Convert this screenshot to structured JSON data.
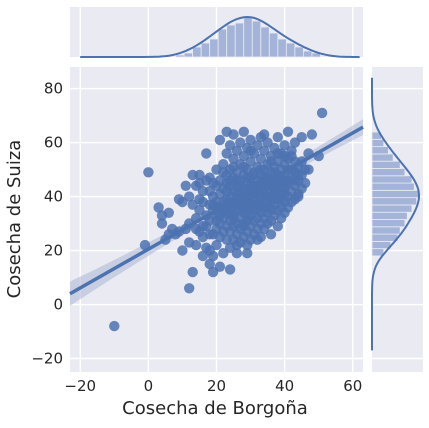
{
  "colors": {
    "background": "#eaeaf2",
    "grid": "#ffffff",
    "marker": "#4c72b0",
    "regression_line": "#4c72b0",
    "confidence_band": "#aab7d6",
    "histogram_bar": "#a4b4d8",
    "kde_line": "#4c72b0"
  },
  "chart_data": {
    "type": "scatter",
    "title": "",
    "xlabel": "Cosecha de Borgoña",
    "ylabel": "Cosecha de Suiza",
    "xlim": [
      -23,
      63
    ],
    "ylim": [
      -25,
      88
    ],
    "xticks": [
      -20,
      0,
      20,
      40,
      60
    ],
    "yticks": [
      -20,
      0,
      20,
      40,
      60,
      80
    ],
    "grid": true,
    "regression": {
      "slope": 0.718,
      "intercept": 20.5,
      "ci_halfwidth_at_mean": 1.6,
      "ci_halfwidth_at_ends": 4.5
    },
    "marginal_x_histogram": {
      "bin_edges": [
        8,
        10.5,
        13,
        15.5,
        18,
        20.5,
        23,
        25.5,
        28,
        30.5,
        33,
        35.5,
        38,
        40.5,
        43,
        45.5,
        48,
        50.5
      ],
      "counts": [
        1,
        2,
        5,
        7,
        9,
        14,
        16,
        17,
        20,
        18,
        15,
        12,
        9,
        7,
        5,
        3,
        2
      ]
    },
    "marginal_y_histogram": {
      "bin_edges": [
        18,
        20.7,
        23.4,
        26.1,
        28.8,
        31.5,
        34.2,
        36.9,
        39.6,
        42.3,
        45,
        47.7,
        50.4,
        53.1,
        55.8,
        58.5,
        61.2,
        63.9
      ],
      "counts": [
        5,
        8,
        11,
        12,
        14,
        15,
        17,
        19,
        20,
        18,
        17,
        14,
        12,
        9,
        7,
        5,
        4
      ]
    },
    "points": [
      [
        -10,
        -8
      ],
      [
        -1,
        22
      ],
      [
        0,
        49
      ],
      [
        4,
        33
      ],
      [
        3,
        36
      ],
      [
        4,
        30
      ],
      [
        5,
        24
      ],
      [
        6,
        34
      ],
      [
        7,
        28
      ],
      [
        8,
        26
      ],
      [
        9,
        27
      ],
      [
        10,
        38
      ],
      [
        10,
        20
      ],
      [
        11,
        28
      ],
      [
        12,
        30
      ],
      [
        12,
        40
      ],
      [
        12,
        6
      ],
      [
        13,
        12
      ],
      [
        13,
        37
      ],
      [
        14,
        28
      ],
      [
        14,
        44
      ],
      [
        14,
        32
      ],
      [
        15,
        27
      ],
      [
        15,
        35
      ],
      [
        15,
        45
      ],
      [
        15,
        48
      ],
      [
        16,
        38
      ],
      [
        16,
        25
      ],
      [
        16,
        42
      ],
      [
        17,
        33
      ],
      [
        17,
        29
      ],
      [
        17,
        21
      ],
      [
        17,
        46
      ],
      [
        18,
        20
      ],
      [
        18,
        31
      ],
      [
        18,
        37
      ],
      [
        18,
        42
      ],
      [
        18,
        15
      ],
      [
        19,
        26
      ],
      [
        19,
        35
      ],
      [
        19,
        40
      ],
      [
        19,
        18
      ],
      [
        19,
        12
      ],
      [
        20,
        28
      ],
      [
        20,
        33
      ],
      [
        20,
        38
      ],
      [
        20,
        44
      ],
      [
        20,
        50
      ],
      [
        20,
        22
      ],
      [
        21,
        30
      ],
      [
        21,
        36
      ],
      [
        21,
        41
      ],
      [
        21,
        46
      ],
      [
        21,
        25
      ],
      [
        21,
        14
      ],
      [
        22,
        27
      ],
      [
        22,
        32
      ],
      [
        22,
        38
      ],
      [
        22,
        43
      ],
      [
        22,
        52
      ],
      [
        22,
        19
      ],
      [
        23,
        29
      ],
      [
        23,
        34
      ],
      [
        23,
        39
      ],
      [
        23,
        45
      ],
      [
        23,
        48
      ],
      [
        23,
        24
      ],
      [
        23,
        56
      ],
      [
        24,
        31
      ],
      [
        24,
        36
      ],
      [
        24,
        40
      ],
      [
        24,
        44
      ],
      [
        24,
        27
      ],
      [
        24,
        21
      ],
      [
        24,
        50
      ],
      [
        24,
        59
      ],
      [
        25,
        33
      ],
      [
        25,
        37
      ],
      [
        25,
        42
      ],
      [
        25,
        47
      ],
      [
        25,
        29
      ],
      [
        25,
        24
      ],
      [
        25,
        54
      ],
      [
        25,
        63
      ],
      [
        26,
        30
      ],
      [
        26,
        35
      ],
      [
        26,
        39
      ],
      [
        26,
        44
      ],
      [
        26,
        49
      ],
      [
        26,
        26
      ],
      [
        26,
        57
      ],
      [
        26,
        19
      ],
      [
        27,
        32
      ],
      [
        27,
        37
      ],
      [
        27,
        41
      ],
      [
        27,
        46
      ],
      [
        27,
        52
      ],
      [
        27,
        28
      ],
      [
        27,
        23
      ],
      [
        27,
        60
      ],
      [
        27,
        37
      ],
      [
        28,
        34
      ],
      [
        28,
        38
      ],
      [
        28,
        43
      ],
      [
        28,
        48
      ],
      [
        28,
        30
      ],
      [
        28,
        25
      ],
      [
        28,
        55
      ],
      [
        28,
        64
      ],
      [
        28,
        40
      ],
      [
        29,
        31
      ],
      [
        29,
        36
      ],
      [
        29,
        40
      ],
      [
        29,
        45
      ],
      [
        29,
        50
      ],
      [
        29,
        27
      ],
      [
        29,
        58
      ],
      [
        29,
        22
      ],
      [
        29,
        42
      ],
      [
        29,
        33
      ],
      [
        30,
        33
      ],
      [
        30,
        38
      ],
      [
        30,
        42
      ],
      [
        30,
        47
      ],
      [
        30,
        29
      ],
      [
        30,
        53
      ],
      [
        30,
        24
      ],
      [
        30,
        61
      ],
      [
        30,
        44
      ],
      [
        31,
        35
      ],
      [
        31,
        39
      ],
      [
        31,
        44
      ],
      [
        31,
        49
      ],
      [
        31,
        31
      ],
      [
        31,
        56
      ],
      [
        31,
        26
      ],
      [
        31,
        41
      ],
      [
        32,
        32
      ],
      [
        32,
        37
      ],
      [
        32,
        41
      ],
      [
        32,
        46
      ],
      [
        32,
        28
      ],
      [
        32,
        51
      ],
      [
        32,
        59
      ],
      [
        32,
        43
      ],
      [
        33,
        34
      ],
      [
        33,
        39
      ],
      [
        33,
        43
      ],
      [
        33,
        48
      ],
      [
        33,
        30
      ],
      [
        33,
        54
      ],
      [
        33,
        25
      ],
      [
        33,
        62
      ],
      [
        33,
        45
      ],
      [
        34,
        36
      ],
      [
        34,
        41
      ],
      [
        34,
        45
      ],
      [
        34,
        32
      ],
      [
        34,
        50
      ],
      [
        34,
        57
      ],
      [
        34,
        28
      ],
      [
        34,
        47
      ],
      [
        35,
        38
      ],
      [
        35,
        42
      ],
      [
        35,
        47
      ],
      [
        35,
        34
      ],
      [
        35,
        52
      ],
      [
        35,
        30
      ],
      [
        35,
        60
      ],
      [
        35,
        44
      ],
      [
        36,
        35
      ],
      [
        36,
        40
      ],
      [
        36,
        44
      ],
      [
        36,
        49
      ],
      [
        36,
        31
      ],
      [
        36,
        55
      ],
      [
        36,
        26
      ],
      [
        36,
        46
      ],
      [
        37,
        37
      ],
      [
        37,
        41
      ],
      [
        37,
        46
      ],
      [
        37,
        33
      ],
      [
        37,
        51
      ],
      [
        37,
        58
      ],
      [
        37,
        43
      ],
      [
        38,
        39
      ],
      [
        38,
        43
      ],
      [
        38,
        48
      ],
      [
        38,
        35
      ],
      [
        38,
        53
      ],
      [
        38,
        29
      ],
      [
        38,
        62
      ],
      [
        38,
        45
      ],
      [
        39,
        36
      ],
      [
        39,
        41
      ],
      [
        39,
        45
      ],
      [
        39,
        50
      ],
      [
        39,
        32
      ],
      [
        39,
        56
      ],
      [
        39,
        47
      ],
      [
        40,
        38
      ],
      [
        40,
        43
      ],
      [
        40,
        47
      ],
      [
        40,
        34
      ],
      [
        40,
        52
      ],
      [
        40,
        59
      ],
      [
        40,
        55
      ],
      [
        41,
        40
      ],
      [
        41,
        45
      ],
      [
        41,
        36
      ],
      [
        41,
        50
      ],
      [
        41,
        64
      ],
      [
        42,
        42
      ],
      [
        42,
        47
      ],
      [
        42,
        38
      ],
      [
        42,
        55
      ],
      [
        42,
        57
      ],
      [
        43,
        44
      ],
      [
        43,
        49
      ],
      [
        43,
        39
      ],
      [
        43,
        53
      ],
      [
        43,
        60
      ],
      [
        44,
        46
      ],
      [
        44,
        41
      ],
      [
        44,
        51
      ],
      [
        44,
        48
      ],
      [
        45,
        43
      ],
      [
        45,
        53
      ],
      [
        45,
        62
      ],
      [
        46,
        50
      ],
      [
        46,
        45
      ],
      [
        47,
        56
      ],
      [
        48,
        63
      ],
      [
        50,
        55
      ],
      [
        51,
        71
      ],
      [
        17,
        56
      ],
      [
        21,
        61
      ],
      [
        23,
        64
      ],
      [
        28,
        51
      ],
      [
        30,
        57
      ],
      [
        34,
        63
      ],
      [
        11,
        44
      ],
      [
        13,
        48
      ],
      [
        9,
        39
      ],
      [
        6,
        26
      ],
      [
        16,
        18
      ],
      [
        24,
        13
      ],
      [
        19,
        45
      ],
      [
        22,
        49
      ],
      [
        25,
        51
      ],
      [
        31,
        48
      ],
      [
        36,
        53
      ],
      [
        38,
        56
      ],
      [
        42,
        50
      ],
      [
        14,
        22
      ],
      [
        18,
        26
      ],
      [
        26,
        22
      ],
      [
        29,
        19
      ],
      [
        32,
        24
      ],
      [
        20,
        36
      ],
      [
        23,
        42
      ],
      [
        26,
        46
      ],
      [
        31,
        37
      ],
      [
        35,
        40
      ],
      [
        40,
        41
      ],
      [
        15,
        39
      ],
      [
        18,
        47
      ],
      [
        22,
        35
      ],
      [
        25,
        38
      ],
      [
        27,
        44
      ],
      [
        30,
        36
      ],
      [
        33,
        40
      ],
      [
        37,
        44
      ],
      [
        39,
        39
      ],
      [
        43,
        46
      ],
      [
        45,
        48
      ],
      [
        21,
        33
      ],
      [
        24,
        46
      ],
      [
        28,
        36
      ],
      [
        32,
        44
      ],
      [
        35,
        46
      ],
      [
        12,
        23
      ],
      [
        16,
        29
      ],
      [
        20,
        31
      ],
      [
        24,
        34
      ],
      [
        28,
        29
      ],
      [
        32,
        35
      ],
      [
        36,
        38
      ],
      [
        40,
        44
      ],
      [
        44,
        40
      ],
      [
        47,
        50
      ],
      [
        26,
        41
      ],
      [
        29,
        47
      ],
      [
        33,
        50
      ],
      [
        37,
        49
      ],
      [
        41,
        54
      ],
      [
        19,
        37
      ],
      [
        23,
        37
      ],
      [
        27,
        35
      ],
      [
        31,
        42
      ],
      [
        35,
        36
      ],
      [
        25,
        32
      ],
      [
        29,
        39
      ],
      [
        33,
        37
      ],
      [
        37,
        40
      ],
      [
        41,
        46
      ]
    ]
  }
}
